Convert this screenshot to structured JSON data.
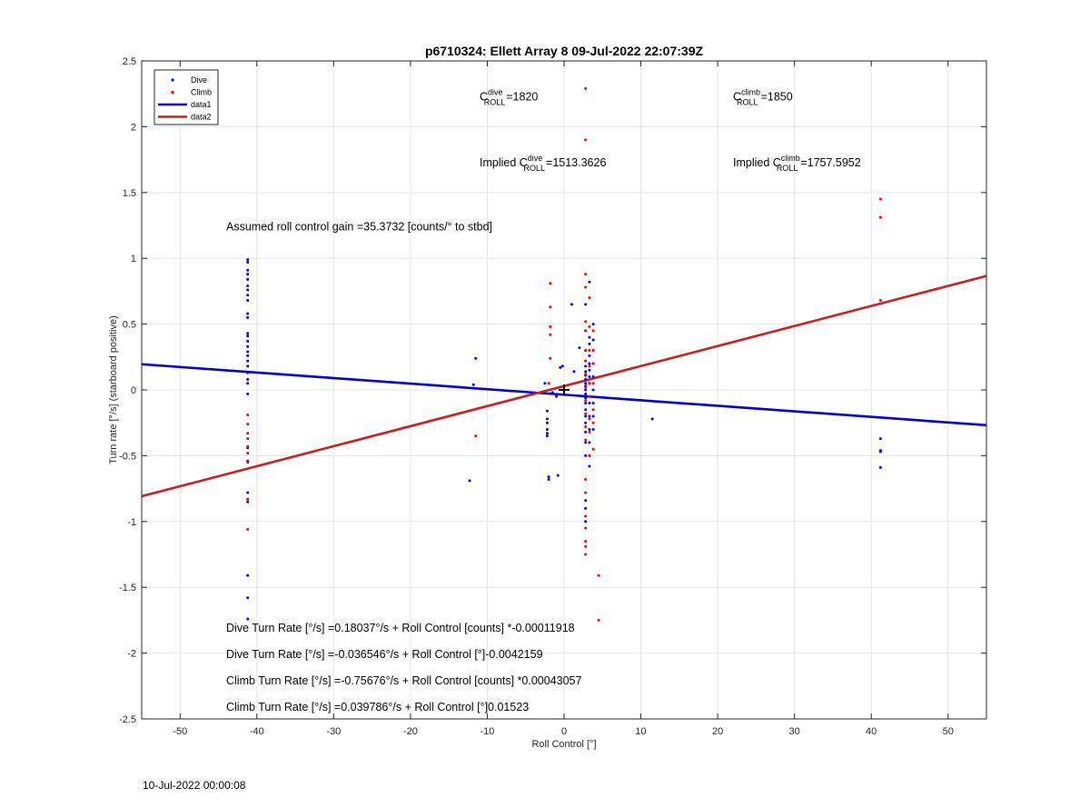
{
  "chart_data": {
    "type": "scatter",
    "title": "p6710324: Ellett Array 8 09-Jul-2022 22:07:39Z",
    "xlabel": "Roll Control [°]",
    "ylabel": "Turn rate [°/s] (starboard positive)",
    "xlim": [
      -55,
      55
    ],
    "ylim": [
      -2.5,
      2.5
    ],
    "xticks": [
      -50,
      -40,
      -30,
      -20,
      -10,
      0,
      10,
      20,
      30,
      40,
      50
    ],
    "yticks": [
      -2.5,
      -2,
      -1.5,
      -1,
      -0.5,
      0,
      0.5,
      1,
      1.5,
      2,
      2.5
    ],
    "grid": true,
    "legend_position": "top-left",
    "legend": [
      "Dive",
      "Climb",
      "data1",
      "data2"
    ],
    "colors": {
      "dive": "#0000ff",
      "climb": "#ff0000",
      "data1": "#0000c8",
      "data2": "#c81e1e",
      "marker": "#000000"
    },
    "fit_lines": [
      {
        "name": "data1",
        "x": [
          -55,
          55
        ],
        "y": [
          0.195,
          -0.268
        ]
      },
      {
        "name": "data2",
        "x": [
          -55,
          55
        ],
        "y": [
          -0.808,
          0.866
        ]
      }
    ],
    "center_marker": {
      "x": 0,
      "y": 0
    },
    "series": [
      {
        "name": "Dive",
        "points": [
          [
            -41.2,
            0.99
          ],
          [
            -41.2,
            0.97
          ],
          [
            -41.2,
            0.91
          ],
          [
            -41.2,
            0.88
          ],
          [
            -41.2,
            0.84
          ],
          [
            -41.2,
            0.79
          ],
          [
            -41.2,
            0.76
          ],
          [
            -41.2,
            0.72
          ],
          [
            -41.2,
            0.68
          ],
          [
            -41.2,
            0.58
          ],
          [
            -41.2,
            0.55
          ],
          [
            -41.2,
            0.43
          ],
          [
            -41.2,
            0.41
          ],
          [
            -41.2,
            0.37
          ],
          [
            -41.2,
            0.33
          ],
          [
            -41.2,
            0.29
          ],
          [
            -41.2,
            0.26
          ],
          [
            -41.2,
            0.22
          ],
          [
            -41.2,
            0.18
          ],
          [
            -41.2,
            0.13
          ],
          [
            -41.2,
            0.08
          ],
          [
            -41.2,
            0.05
          ],
          [
            -41.2,
            -0.03
          ],
          [
            -41.2,
            -0.44
          ],
          [
            -41.2,
            -0.54
          ],
          [
            -41.2,
            -0.78
          ],
          [
            -41.2,
            -0.85
          ],
          [
            -41.2,
            -1.41
          ],
          [
            -41.2,
            -1.58
          ],
          [
            -41.2,
            -1.74
          ],
          [
            -12.3,
            -0.69
          ],
          [
            -11.5,
            0.24
          ],
          [
            -11.8,
            0.04
          ],
          [
            -2.5,
            0.05
          ],
          [
            -2.2,
            -0.16
          ],
          [
            -2.2,
            -0.22
          ],
          [
            -2.2,
            -0.25
          ],
          [
            -2.2,
            -0.3
          ],
          [
            -2.2,
            -0.33
          ],
          [
            -2.2,
            -0.35
          ],
          [
            -2.0,
            -0.66
          ],
          [
            -2.0,
            -0.68
          ],
          [
            -1.5,
            -0.02
          ],
          [
            -1.0,
            -0.05
          ],
          [
            -0.8,
            -0.65
          ],
          [
            -0.5,
            0.17
          ],
          [
            -0.2,
            0.18
          ],
          [
            1.0,
            0.65
          ],
          [
            1.3,
            0.14
          ],
          [
            2.0,
            0.32
          ],
          [
            2.8,
            0.65
          ],
          [
            2.8,
            0.45
          ],
          [
            2.8,
            0.3
          ],
          [
            2.8,
            0.22
          ],
          [
            2.8,
            0.18
          ],
          [
            2.8,
            0.14
          ],
          [
            2.8,
            0.11
          ],
          [
            2.8,
            0.08
          ],
          [
            2.8,
            0.05
          ],
          [
            2.8,
            0.03
          ],
          [
            2.8,
            0.0
          ],
          [
            2.8,
            -0.03
          ],
          [
            2.8,
            -0.06
          ],
          [
            2.8,
            -0.1
          ],
          [
            2.8,
            -0.15
          ],
          [
            2.8,
            -0.2
          ],
          [
            2.8,
            -0.25
          ],
          [
            2.8,
            -0.32
          ],
          [
            2.8,
            -0.4
          ],
          [
            2.8,
            -0.5
          ],
          [
            2.8,
            -0.84
          ],
          [
            2.8,
            -0.9
          ],
          [
            2.8,
            -1.0
          ],
          [
            3.3,
            0.82
          ],
          [
            3.3,
            0.4
          ],
          [
            3.3,
            0.35
          ],
          [
            3.3,
            0.26
          ],
          [
            3.3,
            0.2
          ],
          [
            3.3,
            0.15
          ],
          [
            3.3,
            0.1
          ],
          [
            3.3,
            0.05
          ],
          [
            3.3,
            -0.05
          ],
          [
            3.3,
            -0.1
          ],
          [
            3.3,
            -0.2
          ],
          [
            3.3,
            -0.3
          ],
          [
            3.3,
            -0.4
          ],
          [
            3.3,
            -0.5
          ],
          [
            3.3,
            -0.58
          ],
          [
            3.8,
            0.5
          ],
          [
            3.8,
            0.38
          ],
          [
            3.8,
            0.3
          ],
          [
            3.8,
            0.2
          ],
          [
            3.8,
            0.1
          ],
          [
            3.8,
            0.0
          ],
          [
            3.8,
            -0.1
          ],
          [
            3.8,
            -0.2
          ],
          [
            3.8,
            -0.3
          ],
          [
            11.5,
            -0.22
          ],
          [
            41.2,
            -0.37
          ],
          [
            41.2,
            -0.46
          ],
          [
            41.2,
            -0.47
          ],
          [
            41.2,
            -0.59
          ]
        ]
      },
      {
        "name": "Climb",
        "points": [
          [
            -41.2,
            -0.19
          ],
          [
            -41.2,
            -0.26
          ],
          [
            -41.2,
            -0.33
          ],
          [
            -41.2,
            -0.37
          ],
          [
            -41.2,
            -0.43
          ],
          [
            -41.2,
            -0.48
          ],
          [
            -41.2,
            -0.55
          ],
          [
            -41.2,
            -0.83
          ],
          [
            -41.2,
            -1.06
          ],
          [
            -11.5,
            -0.35
          ],
          [
            -2.0,
            0.05
          ],
          [
            -1.8,
            0.81
          ],
          [
            -1.8,
            0.63
          ],
          [
            -1.8,
            0.48
          ],
          [
            -1.8,
            0.42
          ],
          [
            -1.8,
            0.24
          ],
          [
            2.8,
            2.29
          ],
          [
            2.8,
            1.9
          ],
          [
            2.8,
            0.88
          ],
          [
            2.8,
            0.78
          ],
          [
            2.8,
            0.52
          ],
          [
            2.8,
            0.45
          ],
          [
            2.8,
            0.3
          ],
          [
            2.8,
            0.22
          ],
          [
            2.8,
            0.12
          ],
          [
            2.8,
            0.02
          ],
          [
            2.8,
            -0.08
          ],
          [
            2.8,
            -0.18
          ],
          [
            2.8,
            -0.28
          ],
          [
            2.8,
            -0.38
          ],
          [
            2.8,
            -0.68
          ],
          [
            2.8,
            -0.78
          ],
          [
            2.8,
            -0.96
          ],
          [
            2.8,
            -1.05
          ],
          [
            2.8,
            -1.15
          ],
          [
            2.8,
            -1.19
          ],
          [
            2.8,
            -1.25
          ],
          [
            3.3,
            0.7
          ],
          [
            3.3,
            0.48
          ],
          [
            3.3,
            0.3
          ],
          [
            3.3,
            0.18
          ],
          [
            3.3,
            0.05
          ],
          [
            3.3,
            -0.05
          ],
          [
            3.3,
            -0.22
          ],
          [
            3.3,
            -0.32
          ],
          [
            3.3,
            -0.5
          ],
          [
            3.8,
            0.45
          ],
          [
            3.8,
            0.3
          ],
          [
            3.8,
            0.2
          ],
          [
            3.8,
            0.05
          ],
          [
            3.8,
            -0.15
          ],
          [
            3.8,
            -0.25
          ],
          [
            3.8,
            -0.45
          ],
          [
            4.5,
            -1.41
          ],
          [
            4.5,
            -1.75
          ],
          [
            41.2,
            1.45
          ],
          [
            41.2,
            1.31
          ],
          [
            41.2,
            0.68
          ]
        ]
      }
    ],
    "annotations": {
      "c_dive": {
        "base": "C",
        "sup": "dive",
        "sub": "ROLL",
        "value": "=1820",
        "x": -11,
        "y": 2.2
      },
      "c_climb": {
        "base": "C",
        "sup": "climb",
        "sub": "ROLL",
        "value": "=1850",
        "x": 22,
        "y": 2.2
      },
      "implied_dive": {
        "prefix": "Implied C",
        "sup": "dive",
        "sub": "ROLL",
        "value": "=1513.3626",
        "x": -11,
        "y": 1.7
      },
      "implied_climb": {
        "prefix": "Implied C",
        "sup": "climb",
        "sub": "ROLL",
        "value": "=1757.5952",
        "x": 22,
        "y": 1.7
      },
      "gain": {
        "text": "Assumed roll control gain =35.3732 [counts/° to stbd]",
        "x": -44,
        "y": 1.24
      },
      "eq1": {
        "text": "Dive Turn Rate [°/s] =0.18037°/s + Roll Control [counts] *-0.00011918",
        "x": -44,
        "y": -1.81
      },
      "eq2": {
        "text": "Dive Turn Rate [°/s] =-0.036546°/s + Roll Control [°]-0.0042159",
        "x": -44,
        "y": -2.01
      },
      "eq3": {
        "text": "Climb Turn Rate [°/s] =-0.75676°/s + Roll Control [counts] *0.00043057",
        "x": -44,
        "y": -2.21
      },
      "eq4": {
        "text": "Climb Turn Rate [°/s] =0.039786°/s + Roll Control [°]0.01523",
        "x": -44,
        "y": -2.41
      }
    }
  },
  "footer": {
    "timestamp": "10-Jul-2022 00:00:08"
  }
}
